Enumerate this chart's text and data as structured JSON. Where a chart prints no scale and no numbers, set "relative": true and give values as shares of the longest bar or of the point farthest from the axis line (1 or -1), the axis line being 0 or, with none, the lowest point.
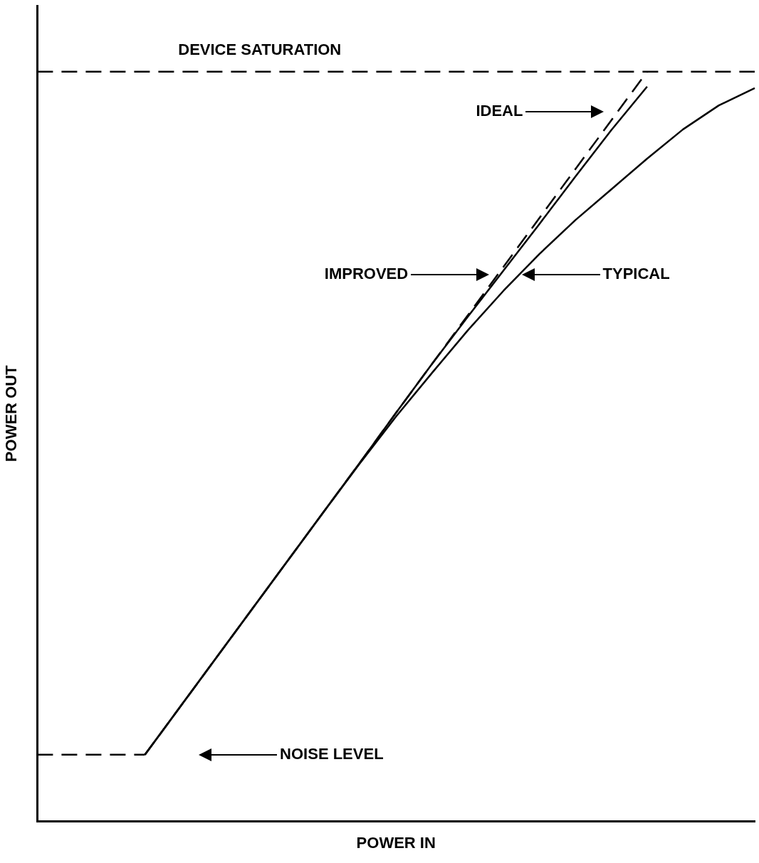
{
  "chart_data": {
    "type": "line",
    "relative": true,
    "xlabel": "POWER IN",
    "ylabel": "POWER OUT",
    "tick_labels": false,
    "grid": false,
    "legend": false,
    "marker": "none",
    "categories": [
      null,
      null,
      null,
      null,
      null,
      null,
      null,
      null,
      null,
      null,
      null,
      null,
      null,
      null,
      null,
      null,
      null,
      null,
      null,
      null,
      null
    ],
    "series": [
      {
        "color": "#000000",
        "line_style": "dashed",
        "values": [
          1.0,
          1.0,
          1.0,
          1.0,
          1.0,
          1.0,
          1.0,
          1.0,
          1.0,
          1.0,
          1.0,
          1.0,
          1.0,
          1.0,
          1.0,
          1.0,
          1.0,
          1.0,
          1.0,
          1.0,
          1.0
        ]
      },
      {
        "color": "#000000",
        "line_style": "dashed",
        "values": [
          null,
          null,
          null,
          0.089,
          0.154,
          0.219,
          0.284,
          0.349,
          0.414,
          0.479,
          0.545,
          0.61,
          0.675,
          0.74,
          0.805,
          0.87,
          0.935,
          1.0,
          null,
          null,
          null
        ]
      },
      {
        "color": "#000000",
        "line_style": "solid",
        "values": [
          null,
          null,
          null,
          0.089,
          0.154,
          0.219,
          0.284,
          0.349,
          0.414,
          0.479,
          0.545,
          0.61,
          0.673,
          0.735,
          0.797,
          0.86,
          0.922,
          0.98,
          null,
          null,
          null
        ]
      },
      {
        "color": "#000000",
        "line_style": "solid",
        "values": [
          null,
          null,
          null,
          0.089,
          0.154,
          0.219,
          0.284,
          0.349,
          0.414,
          0.478,
          0.54,
          0.598,
          0.655,
          0.708,
          0.757,
          0.802,
          0.843,
          0.884,
          0.923,
          0.955,
          0.978
        ]
      },
      {
        "color": "#000000",
        "line_style": "dashed",
        "values": [
          0.089,
          0.089,
          0.089,
          0.089,
          null,
          null,
          null,
          null,
          null,
          null,
          null,
          null,
          null,
          null,
          null,
          null,
          null,
          null,
          null,
          null,
          null
        ]
      }
    ],
    "annotations": [
      "DEVICE SATURATION",
      "IDEAL",
      "IMPROVED",
      "TYPICAL",
      "NOISE LEVEL"
    ]
  }
}
